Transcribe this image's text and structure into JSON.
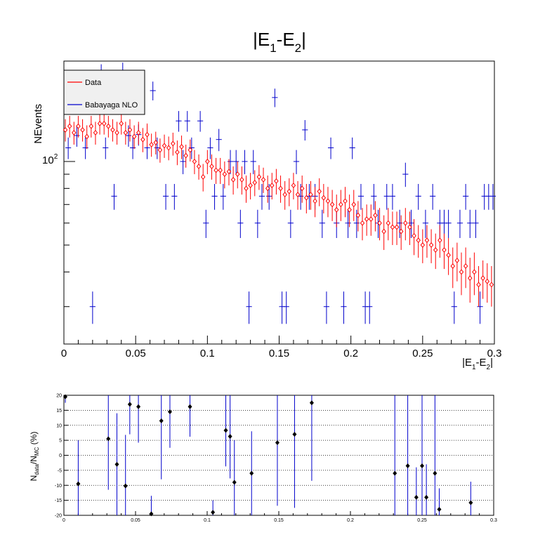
{
  "chart_data": [
    {
      "type": "scatter",
      "title_main": "|E",
      "title_sub1": "1",
      "title_mid": "-E",
      "title_sub2": "2",
      "title_end": "|",
      "xlabel_main": "|E",
      "xlabel_sub1": "1",
      "xlabel_mid": "-E",
      "xlabel_sub2": "2",
      "xlabel_end": "|",
      "ylabel": "NEvents",
      "y_scale": "log",
      "xlim": [
        0,
        0.3
      ],
      "ylim": [
        22,
        230
      ],
      "x_ticks": [
        "0",
        "0.05",
        "0.1",
        "0.15",
        "0.2",
        "0.25",
        "0.3"
      ],
      "y_tick_label": "10",
      "y_tick_exp": "2",
      "legend": {
        "placement": "top-left",
        "entries": [
          {
            "label": "Data",
            "color": "#ff0000"
          },
          {
            "label": "Babayaga NLO",
            "color": "#0000cc"
          }
        ]
      },
      "series": [
        {
          "name": "Data",
          "color": "#ff0000",
          "marker": "open-diamond",
          "x": [
            0.001,
            0.004,
            0.007,
            0.01,
            0.013,
            0.016,
            0.019,
            0.022,
            0.025,
            0.028,
            0.031,
            0.034,
            0.037,
            0.04,
            0.043,
            0.046,
            0.049,
            0.052,
            0.055,
            0.058,
            0.061,
            0.064,
            0.067,
            0.07,
            0.073,
            0.076,
            0.079,
            0.082,
            0.085,
            0.088,
            0.091,
            0.094,
            0.097,
            0.1,
            0.103,
            0.106,
            0.109,
            0.112,
            0.115,
            0.118,
            0.121,
            0.124,
            0.127,
            0.13,
            0.133,
            0.136,
            0.139,
            0.142,
            0.145,
            0.148,
            0.151,
            0.154,
            0.157,
            0.16,
            0.163,
            0.166,
            0.169,
            0.172,
            0.175,
            0.178,
            0.181,
            0.184,
            0.187,
            0.19,
            0.193,
            0.196,
            0.199,
            0.202,
            0.205,
            0.208,
            0.211,
            0.214,
            0.217,
            0.22,
            0.223,
            0.226,
            0.229,
            0.232,
            0.235,
            0.238,
            0.241,
            0.244,
            0.247,
            0.25,
            0.253,
            0.256,
            0.259,
            0.262,
            0.265,
            0.268,
            0.271,
            0.274,
            0.277,
            0.28,
            0.283,
            0.286,
            0.289,
            0.292,
            0.295,
            0.298
          ],
          "y": [
            130,
            134,
            127,
            134,
            130,
            123,
            134,
            127,
            137,
            137,
            134,
            130,
            127,
            137,
            127,
            130,
            123,
            127,
            120,
            125,
            115,
            117,
            110,
            114,
            112,
            116,
            108,
            113,
            105,
            110,
            100,
            96,
            88,
            100,
            96,
            93,
            93,
            90,
            92,
            86,
            90,
            86,
            80,
            82,
            84,
            88,
            86,
            80,
            82,
            85,
            80,
            76,
            78,
            82,
            76,
            80,
            74,
            76,
            72,
            78,
            74,
            72,
            70,
            67,
            70,
            72,
            67,
            70,
            64,
            60,
            62,
            62,
            64,
            60,
            56,
            60,
            58,
            58,
            56,
            60,
            58,
            54,
            52,
            50,
            52,
            50,
            48,
            52,
            48,
            46,
            42,
            44,
            40,
            42,
            38,
            40,
            36,
            38,
            37,
            36
          ],
          "yerr": [
            12,
            12,
            12,
            12,
            12,
            12,
            12,
            12,
            12,
            12,
            12,
            12,
            12,
            12,
            12,
            12,
            12,
            12,
            12,
            12,
            11,
            11,
            11,
            11,
            11,
            11,
            11,
            11,
            10,
            10,
            10,
            10,
            10,
            10,
            10,
            10,
            10,
            10,
            10,
            10,
            10,
            10,
            9,
            9,
            9,
            9,
            9,
            9,
            9,
            9,
            9,
            9,
            9,
            9,
            9,
            9,
            9,
            9,
            9,
            9,
            9,
            9,
            9,
            9,
            9,
            9,
            9,
            9,
            8,
            8,
            8,
            8,
            8,
            8,
            8,
            8,
            8,
            8,
            8,
            8,
            8,
            8,
            7,
            7,
            7,
            7,
            7,
            7,
            7,
            7,
            7,
            7,
            7,
            7,
            7,
            7,
            6,
            6,
            6,
            6
          ]
        },
        {
          "name": "Babayaga NLO",
          "color": "#0000cc",
          "marker": "cross",
          "x": [
            0.003,
            0.009,
            0.015,
            0.02,
            0.026,
            0.029,
            0.035,
            0.041,
            0.045,
            0.048,
            0.052,
            0.058,
            0.062,
            0.065,
            0.071,
            0.077,
            0.08,
            0.083,
            0.086,
            0.089,
            0.095,
            0.099,
            0.102,
            0.105,
            0.108,
            0.111,
            0.116,
            0.12,
            0.123,
            0.126,
            0.129,
            0.132,
            0.135,
            0.138,
            0.143,
            0.147,
            0.152,
            0.155,
            0.158,
            0.162,
            0.165,
            0.168,
            0.171,
            0.175,
            0.18,
            0.183,
            0.186,
            0.19,
            0.195,
            0.198,
            0.201,
            0.204,
            0.207,
            0.21,
            0.213,
            0.216,
            0.219,
            0.225,
            0.229,
            0.234,
            0.238,
            0.242,
            0.247,
            0.252,
            0.257,
            0.262,
            0.265,
            0.268,
            0.272,
            0.276,
            0.28,
            0.283,
            0.287,
            0.29,
            0.293,
            0.296,
            0.299
          ],
          "y": [
            112,
            124,
            112,
            30,
            209,
            112,
            75,
            212,
            124,
            112,
            125,
            112,
            180,
            112,
            75,
            75,
            140,
            100,
            140,
            112,
            140,
            60,
            112,
            75,
            120,
            75,
            100,
            100,
            60,
            100,
            30,
            100,
            60,
            75,
            75,
            170,
            30,
            30,
            60,
            100,
            75,
            130,
            75,
            75,
            60,
            30,
            112,
            60,
            30,
            60,
            112,
            60,
            75,
            30,
            30,
            75,
            60,
            75,
            75,
            60,
            90,
            60,
            75,
            60,
            75,
            60,
            60,
            60,
            30,
            60,
            75,
            60,
            60,
            30,
            75,
            75,
            75
          ],
          "xerr": [
            0.002,
            0.002,
            0.002,
            0.002,
            0.002,
            0.002,
            0.002,
            0.002,
            0.002,
            0.002,
            0.002,
            0.002,
            0.002,
            0.002,
            0.002,
            0.002,
            0.002,
            0.002,
            0.002,
            0.002,
            0.002,
            0.002,
            0.002,
            0.002,
            0.002,
            0.002,
            0.002,
            0.002,
            0.002,
            0.002,
            0.002,
            0.002,
            0.002,
            0.002,
            0.002,
            0.002,
            0.002,
            0.002,
            0.002,
            0.002,
            0.002,
            0.002,
            0.002,
            0.002,
            0.002,
            0.002,
            0.002,
            0.002,
            0.002,
            0.002,
            0.002,
            0.002,
            0.002,
            0.002,
            0.002,
            0.002,
            0.002,
            0.002,
            0.002,
            0.002,
            0.002,
            0.002,
            0.002,
            0.002,
            0.002,
            0.002,
            0.002,
            0.002,
            0.002,
            0.002,
            0.002,
            0.002,
            0.002,
            0.002,
            0.002,
            0.002,
            0.002
          ],
          "yerr": [
            10,
            11,
            10,
            4,
            15,
            10,
            8,
            15,
            11,
            10,
            11,
            10,
            14,
            10,
            8,
            8,
            12,
            10,
            12,
            10,
            12,
            7,
            10,
            8,
            11,
            8,
            10,
            10,
            7,
            10,
            4,
            10,
            7,
            8,
            8,
            13,
            4,
            4,
            7,
            10,
            8,
            11,
            8,
            8,
            7,
            4,
            10,
            7,
            4,
            7,
            10,
            7,
            8,
            4,
            4,
            8,
            7,
            8,
            8,
            7,
            9,
            7,
            8,
            7,
            8,
            7,
            7,
            7,
            4,
            7,
            8,
            7,
            7,
            4,
            8,
            8,
            8
          ]
        }
      ]
    },
    {
      "type": "scatter",
      "ylabel_main": "N",
      "ylabel_sub1": "data",
      "ylabel_mid": "/N",
      "ylabel_sub2": "MC",
      "ylabel_end": " (%)",
      "xlim": [
        0,
        0.3
      ],
      "ylim": [
        -20,
        20
      ],
      "x_ticks": [
        "0",
        "0.05",
        "0.1",
        "0.15",
        "0.2",
        "0.25",
        "0.3"
      ],
      "y_ticks": [
        "-20",
        "-15",
        "-10",
        "-5",
        "0",
        "5",
        "10",
        "15",
        "20"
      ],
      "grid": "horizontal-dotted",
      "marker_color": "#000000",
      "errorbar_color": "#0000cc",
      "points": [
        {
          "x": 0.001,
          "y": 19.5,
          "err": 2
        },
        {
          "x": 0.01,
          "y": -9.5,
          "err": 14.5
        },
        {
          "x": 0.031,
          "y": 5.5,
          "err": 17
        },
        {
          "x": 0.037,
          "y": -3,
          "err": 17
        },
        {
          "x": 0.043,
          "y": -10.2,
          "err": 17
        },
        {
          "x": 0.046,
          "y": 17,
          "err": 10
        },
        {
          "x": 0.052,
          "y": 16.2,
          "err": 12
        },
        {
          "x": 0.061,
          "y": -19.5,
          "err": 6
        },
        {
          "x": 0.068,
          "y": 11.5,
          "err": 19.5
        },
        {
          "x": 0.074,
          "y": 14.5,
          "err": 12
        },
        {
          "x": 0.088,
          "y": 16.2,
          "err": 10
        },
        {
          "x": 0.104,
          "y": -19,
          "err": 4
        },
        {
          "x": 0.113,
          "y": 8.3,
          "err": 12
        },
        {
          "x": 0.116,
          "y": 6.3,
          "err": 14
        },
        {
          "x": 0.119,
          "y": -9,
          "err": 14
        },
        {
          "x": 0.131,
          "y": -6,
          "err": 14
        },
        {
          "x": 0.149,
          "y": 4.2,
          "err": 21
        },
        {
          "x": 0.161,
          "y": 7,
          "err": 24.5
        },
        {
          "x": 0.173,
          "y": 17.5,
          "err": 26
        },
        {
          "x": 0.231,
          "y": -6,
          "err": 27
        },
        {
          "x": 0.24,
          "y": -3.5,
          "err": 27
        },
        {
          "x": 0.246,
          "y": -14,
          "err": 10
        },
        {
          "x": 0.25,
          "y": -3.5,
          "err": 27
        },
        {
          "x": 0.253,
          "y": -14,
          "err": 11
        },
        {
          "x": 0.259,
          "y": -6,
          "err": 27
        },
        {
          "x": 0.262,
          "y": -18,
          "err": 7
        },
        {
          "x": 0.284,
          "y": -15.8,
          "err": 7
        }
      ]
    }
  ]
}
